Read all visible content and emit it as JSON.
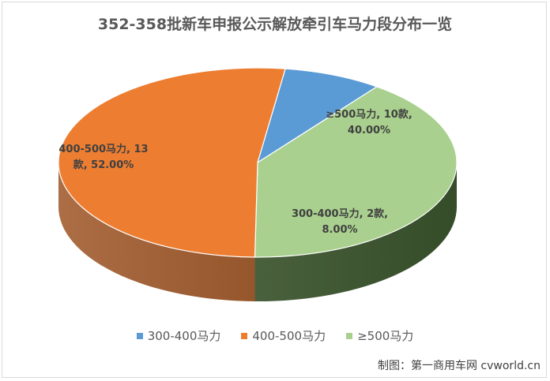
{
  "chart_data": {
    "type": "pie",
    "title": "352-358批新车申报公示解放牵引车马力段分布一览",
    "slices": [
      {
        "name": "300-400马力",
        "count_label": "2款",
        "value": 8.0,
        "percent_label": "8.00%",
        "color": "#5b9bd5",
        "side_color": "#1f3b5a"
      },
      {
        "name": "≥500马力",
        "count_label": "10款",
        "value": 40.0,
        "percent_label": "40.00%",
        "color": "#a9d08e",
        "side_color": "#3f5a30"
      },
      {
        "name": "400-500马力",
        "count_label": "13款",
        "value": 52.0,
        "percent_label": "52.00%",
        "color": "#ed7d31",
        "side_color": "#9a4e1c"
      }
    ],
    "labels": {
      "300-400马力": [
        "300-400马力, 2款,",
        "8.00%"
      ],
      "≥500马力": [
        "≥500马力, 10款,",
        "40.00%"
      ],
      "400-500马力": [
        "400-500马力, 13",
        "款, 52.00%"
      ]
    },
    "legend": [
      "300-400马力",
      "400-500马力",
      "≥500马力"
    ],
    "legend_position": "bottom"
  },
  "credit": "制图：第一商用车网 cvworld.cn"
}
